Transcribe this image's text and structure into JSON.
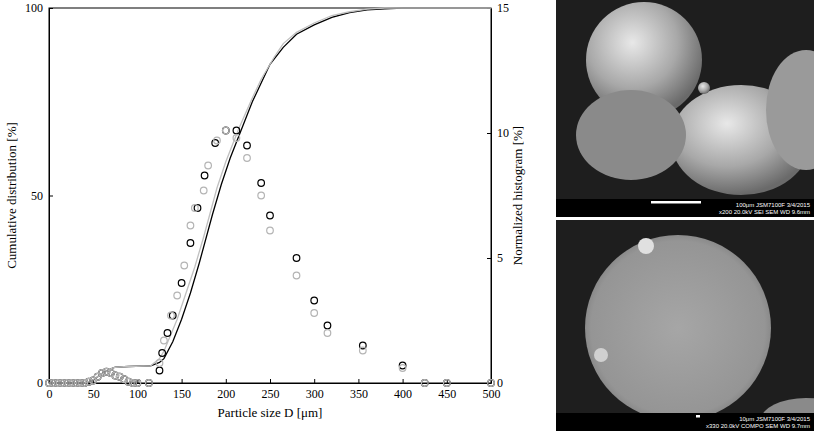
{
  "chart_data": {
    "type": "line",
    "x_label": "Particle size D [μm]",
    "y_label": "Cumulative distribution [%]",
    "y2_label": "Normalized histogram [%]",
    "xlim": [
      0,
      500
    ],
    "xticks": [
      0,
      50,
      100,
      150,
      200,
      250,
      300,
      350,
      400,
      450,
      500
    ],
    "ylim": [
      0,
      100
    ],
    "yticks": [
      0,
      50,
      100
    ],
    "y2lim": [
      0,
      15
    ],
    "y2ticks": [
      0,
      5,
      10,
      15
    ],
    "grid": false,
    "series": [
      {
        "type": "line",
        "line_style": "solid",
        "color": "#000000",
        "x": [
          0,
          40,
          50,
          60,
          70,
          75,
          90,
          115,
          125,
          130,
          140,
          150,
          160,
          170,
          185,
          195,
          205,
          220,
          230,
          240,
          250,
          265,
          280,
          300,
          320,
          340,
          360,
          380,
          400,
          500
        ],
        "values": [
          0,
          0,
          0.8,
          2.5,
          3.8,
          4.2,
          4.4,
          4.6,
          5.5,
          6.5,
          11,
          17,
          24,
          32,
          45,
          53,
          60,
          69,
          75,
          80,
          85,
          89.5,
          93,
          95.5,
          97.5,
          98.8,
          99.5,
          99.8,
          100,
          100
        ]
      },
      {
        "type": "line",
        "line_style": "solid",
        "color": "#c0c0c0",
        "x": [
          0,
          40,
          50,
          60,
          70,
          75,
          90,
          115,
          125,
          130,
          145,
          155,
          165,
          175,
          190,
          200,
          215,
          230,
          240,
          255,
          265,
          280,
          300,
          320,
          340,
          360,
          380,
          500
        ],
        "values": [
          0,
          0,
          0.8,
          2.5,
          3.8,
          4.2,
          4.4,
          4.6,
          6.5,
          8.5,
          17,
          24,
          31,
          39,
          52,
          59,
          68,
          76,
          81,
          87,
          90.5,
          93.5,
          96,
          98,
          99,
          99.7,
          100,
          100
        ]
      },
      {
        "type": "scatter",
        "axis": "y2",
        "marker": "circle",
        "color": "#000000",
        "x": [
          0,
          5,
          10,
          15,
          20,
          25,
          30,
          35,
          40,
          45,
          50,
          55,
          60,
          65,
          70,
          75,
          80,
          85,
          90,
          95,
          100,
          113,
          125,
          128,
          134,
          140,
          150,
          160,
          168,
          176,
          188,
          200,
          212,
          224,
          240,
          250,
          280,
          300,
          315,
          355,
          400,
          425,
          450,
          500
        ],
        "values": [
          0,
          0,
          0,
          0,
          0,
          0,
          0,
          0,
          0,
          0.05,
          0.1,
          0.25,
          0.4,
          0.45,
          0.4,
          0.3,
          0.25,
          0.15,
          0.05,
          0,
          0,
          0,
          0.5,
          1.2,
          2.0,
          2.7,
          4.0,
          5.6,
          7.0,
          8.3,
          9.6,
          10.1,
          10.1,
          9.5,
          8.0,
          6.7,
          5.0,
          3.3,
          2.3,
          1.5,
          0.7,
          0,
          0,
          0
        ]
      },
      {
        "type": "scatter",
        "axis": "y2",
        "marker": "circle",
        "color": "#b4b4b4",
        "x": [
          0,
          5,
          10,
          15,
          20,
          25,
          30,
          35,
          40,
          45,
          50,
          55,
          60,
          65,
          70,
          75,
          80,
          85,
          90,
          95,
          100,
          113,
          125,
          130,
          138,
          145,
          153,
          160,
          165,
          175,
          180,
          190,
          200,
          212,
          224,
          240,
          250,
          280,
          300,
          315,
          355,
          400,
          425,
          450,
          500
        ],
        "values": [
          0,
          0,
          0,
          0,
          0,
          0,
          0,
          0,
          0,
          0.05,
          0.1,
          0.25,
          0.4,
          0.45,
          0.4,
          0.3,
          0.25,
          0.15,
          0.05,
          0,
          0,
          0,
          0.8,
          1.7,
          2.7,
          3.5,
          4.7,
          6.3,
          7.0,
          7.7,
          8.7,
          9.7,
          10.1,
          9.8,
          9.0,
          7.5,
          6.1,
          4.3,
          2.8,
          2.0,
          1.3,
          0.6,
          0,
          0,
          0
        ]
      }
    ]
  },
  "images": [
    {
      "texts": [
        "100μm JSM7100F 3/4/2015",
        "x200 20.0kV SEI SEM WD 9.6mm"
      ]
    },
    {
      "texts": [
        "10μm JSM7100F 3/4/2015",
        "x330 20.0kV COMPO SEM WD 9.7mm"
      ]
    }
  ]
}
